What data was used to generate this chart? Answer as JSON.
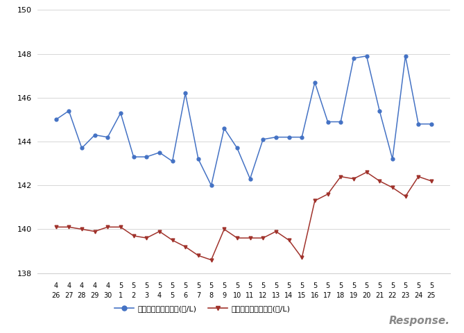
{
  "x_labels_row1": [
    "4",
    "4",
    "4",
    "4",
    "4",
    "5",
    "5",
    "5",
    "5",
    "5",
    "5",
    "5",
    "5",
    "5",
    "5",
    "5",
    "5",
    "5",
    "5",
    "5",
    "5",
    "5",
    "5",
    "5",
    "5",
    "5",
    "5",
    "5",
    "5",
    "5"
  ],
  "x_labels_row2": [
    "26",
    "27",
    "28",
    "29",
    "30",
    "1",
    "2",
    "3",
    "4",
    "5",
    "6",
    "7",
    "8",
    "9",
    "10",
    "11",
    "12",
    "13",
    "14",
    "15",
    "16",
    "17",
    "18",
    "19",
    "20",
    "21",
    "22",
    "23",
    "24",
    "25"
  ],
  "blue_data": [
    145.0,
    145.4,
    143.7,
    144.3,
    144.2,
    145.3,
    143.3,
    143.3,
    143.5,
    143.1,
    146.2,
    143.2,
    142.0,
    144.6,
    143.7,
    142.3,
    144.1,
    144.2,
    144.2,
    144.2,
    146.7,
    144.9,
    144.9,
    147.8,
    147.9,
    145.4,
    143.2,
    147.9,
    144.8,
    144.8
  ],
  "red_data": [
    140.1,
    140.1,
    140.0,
    139.9,
    140.1,
    140.1,
    139.7,
    139.6,
    139.9,
    139.5,
    139.2,
    138.8,
    138.6,
    140.0,
    139.6,
    139.6,
    139.6,
    139.9,
    139.5,
    138.7,
    141.3,
    141.6,
    142.4,
    142.3,
    142.6,
    142.2,
    141.9,
    141.5,
    142.4,
    142.2
  ],
  "blue_color": "#4472C4",
  "red_color": "#A0322B",
  "ylim_min": 138,
  "ylim_max": 150,
  "yticks": [
    138,
    140,
    142,
    144,
    146,
    148,
    150
  ],
  "legend_blue": "レギュラー看板価格(円/L)",
  "legend_red": "レギュラー実売価格(円/L)",
  "background_color": "#ffffff",
  "grid_color": "#d0d0d0",
  "watermark": "Response.",
  "figsize": [
    6.69,
    4.8
  ],
  "dpi": 100
}
